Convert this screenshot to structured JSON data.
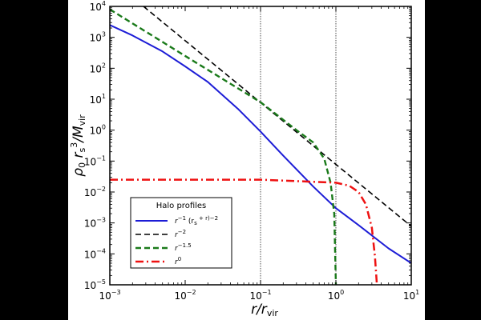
{
  "chart_data": {
    "type": "line",
    "xscale": "log",
    "yscale": "log",
    "xlim": [
      0.001,
      10
    ],
    "ylim": [
      1e-05,
      10000
    ],
    "xticks": [
      0.001,
      0.01,
      0.1,
      1,
      10
    ],
    "yticks": [
      1e-05,
      0.0001,
      0.001,
      0.01,
      0.1,
      1,
      10,
      100,
      1000,
      10000
    ],
    "xlabel": "r/r_vir",
    "ylabel": "ρ_0 r_s^3/M_vir",
    "vertical_lines": [
      0.1,
      1
    ],
    "legend_title": "Halo profiles",
    "legend_loc": "lower-left",
    "series": [
      {
        "name": "r^-1 (r_s + r)^-2",
        "color": "#1c1cd6",
        "style": "solid",
        "x": [
          0.001,
          0.002,
          0.005,
          0.01,
          0.02,
          0.05,
          0.1,
          0.2,
          0.5,
          1,
          2,
          5,
          10
        ],
        "y": [
          2500,
          1150,
          350,
          115,
          36,
          4.9,
          0.9,
          0.15,
          0.015,
          0.003,
          0.00085,
          0.00015,
          5e-05
        ]
      },
      {
        "name": "r^-2",
        "color": "#000000",
        "style": "dashed",
        "x": [
          0.0028,
          0.01,
          0.1,
          1,
          10
        ],
        "y": [
          10000,
          780,
          7.8,
          0.078,
          0.00078
        ]
      },
      {
        "name": "r^-1.5",
        "color": "#1a7a1a",
        "style": "dashed",
        "x": [
          0.001,
          0.01,
          0.1,
          0.3,
          0.5,
          0.7,
          0.85,
          0.95,
          1.0
        ],
        "y": [
          8000,
          250,
          8,
          1.0,
          0.4,
          0.12,
          0.02,
          0.002,
          1e-05
        ]
      },
      {
        "name": "r^0",
        "color": "#ee1111",
        "style": "dashdot",
        "x": [
          0.001,
          0.1,
          1,
          1.5,
          2,
          2.5,
          3,
          3.3,
          3.5
        ],
        "y": [
          0.025,
          0.025,
          0.02,
          0.016,
          0.01,
          0.004,
          0.0007,
          8e-05,
          1e-05
        ]
      }
    ]
  }
}
